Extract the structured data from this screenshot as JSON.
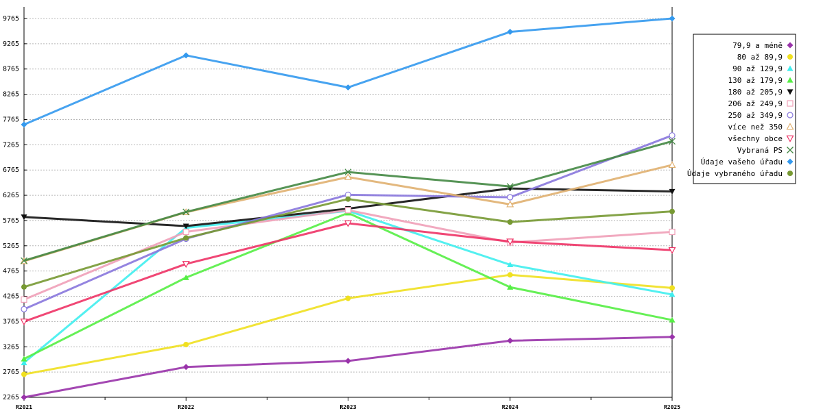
{
  "chart_data": {
    "type": "line",
    "categories": [
      "R2021",
      "R2022",
      "R2023",
      "R2024",
      "R2025"
    ],
    "ylim": [
      2265,
      9765
    ],
    "yticks": [
      2265,
      2765,
      3265,
      3765,
      4265,
      4765,
      5265,
      5765,
      6265,
      6765,
      7265,
      7765,
      8265,
      8765,
      9265,
      9765
    ],
    "grid": true,
    "legend_position": "top-right",
    "series": [
      {
        "name": "79,9 a méně",
        "color": "#9933aa",
        "marker": "diamond",
        "values": [
          2265,
          2865,
          2985,
          3385,
          3460
        ]
      },
      {
        "name": "80 až 89,9",
        "color": "#f0e020",
        "marker": "circle-filled",
        "values": [
          2720,
          3310,
          4225,
          4690,
          4430
        ]
      },
      {
        "name": "90 až 129,9",
        "color": "#40eeee",
        "marker": "triangle-up",
        "values": [
          2950,
          5620,
          5955,
          4890,
          4300
        ]
      },
      {
        "name": "130 až 179,9",
        "color": "#55ee44",
        "marker": "triangle-up",
        "values": [
          3025,
          4635,
          5915,
          4445,
          3795
        ]
      },
      {
        "name": "180 až 205,9",
        "color": "#111111",
        "marker": "triangle-down",
        "values": [
          5835,
          5655,
          6000,
          6400,
          6340
        ]
      },
      {
        "name": "206 až 249,9",
        "color": "#f0a0b8",
        "marker": "square-open",
        "values": [
          4200,
          5540,
          5970,
          5330,
          5540
        ]
      },
      {
        "name": "250 až 349,9",
        "color": "#8877dd",
        "marker": "circle-open",
        "values": [
          4010,
          5405,
          6275,
          6225,
          7450
        ]
      },
      {
        "name": "více než 350",
        "color": "#e0b070",
        "marker": "triangle-up-open",
        "values": [
          4960,
          5930,
          6625,
          6085,
          6865
        ]
      },
      {
        "name": "všechny obce",
        "color": "#ee3366",
        "marker": "triangle-down-open",
        "values": [
          3765,
          4905,
          5710,
          5350,
          5180
        ]
      },
      {
        "name": "Vybraná PS",
        "color": "#448844",
        "marker": "cross",
        "values": [
          4970,
          5935,
          6725,
          6440,
          7335
        ]
      },
      {
        "name": "Údaje vašeho úřadu",
        "color": "#3399ee",
        "marker": "diamond",
        "values": [
          7665,
          9035,
          8400,
          9500,
          9765
        ]
      },
      {
        "name": "Údaje vybraného úřadu",
        "color": "#779933",
        "marker": "circle-filled",
        "values": [
          4450,
          5420,
          6190,
          5735,
          5945
        ]
      }
    ]
  }
}
